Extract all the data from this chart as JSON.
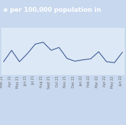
{
  "title": "e per 100,000 population in",
  "title_bg": "#3a5795",
  "title_color": "#ffffff",
  "title_fontsize": 6.5,
  "labels": [
    "Mar 21",
    "Apr 21",
    "May 21",
    "Jun 21",
    "Jul 21",
    "Aug 21",
    "Sept 21",
    "Oct 21",
    "Nov 21",
    "Dec 21",
    "Jan 22",
    "Feb 22",
    "Mar 22",
    "Apr 22",
    "May 22",
    "Jun 22"
  ],
  "values": [
    2.8,
    5.2,
    2.8,
    4.5,
    6.5,
    6.9,
    5.2,
    5.8,
    3.5,
    2.9,
    3.2,
    3.4,
    4.9,
    2.8,
    2.6,
    4.8
  ],
  "line_color": "#3a5795",
  "bg_color": "#c8d8ee",
  "plot_bg": "#dce8f5",
  "grid_color": "#b0c4de",
  "ylim": [
    0,
    10
  ],
  "label_fontsize": 3.5,
  "label_rotation": 90
}
